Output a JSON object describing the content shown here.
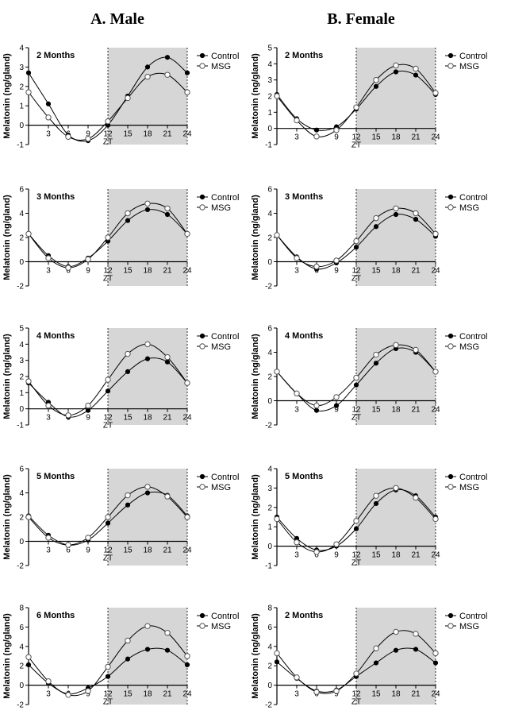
{
  "columns": [
    {
      "title": "A. Male"
    },
    {
      "title": "B. Female"
    }
  ],
  "chart_data": [
    {
      "type": "line",
      "panel_label": "2 Months",
      "ylabel": "Melatonin (ng/gland)",
      "xlabel": "ZT",
      "xticks": [
        3,
        6,
        9,
        12,
        15,
        18,
        21,
        24
      ],
      "ylim": [
        -1,
        4
      ],
      "yticks": [
        -1,
        0,
        1,
        2,
        3,
        4
      ],
      "dark_phase": [
        12,
        24
      ],
      "legend": "top-right",
      "series": [
        {
          "name": "Control",
          "marker": "filled",
          "x": [
            0,
            3,
            6,
            9,
            12,
            15,
            18,
            21,
            24
          ],
          "y": [
            2.7,
            1.1,
            -0.5,
            -0.8,
            0,
            1.5,
            3.0,
            3.5,
            2.7
          ]
        },
        {
          "name": "MSG",
          "marker": "open",
          "x": [
            0,
            3,
            6,
            9,
            12,
            15,
            18,
            21,
            24
          ],
          "y": [
            1.7,
            0.4,
            -0.6,
            -0.7,
            0.2,
            1.4,
            2.5,
            2.6,
            1.7
          ]
        }
      ]
    },
    {
      "type": "line",
      "panel_label": "2 Months",
      "ylabel": "Melatonin (ng/gland)",
      "xlabel": "ZT",
      "xticks": [
        3,
        6,
        9,
        12,
        15,
        18,
        21,
        24
      ],
      "ylim": [
        -1,
        5
      ],
      "yticks": [
        -1,
        0,
        1,
        2,
        3,
        4,
        5
      ],
      "dark_phase": [
        12,
        24
      ],
      "legend": "top-right",
      "series": [
        {
          "name": "Control",
          "marker": "filled",
          "x": [
            0,
            3,
            6,
            9,
            12,
            15,
            18,
            21,
            24
          ],
          "y": [
            2.1,
            0.6,
            -0.1,
            0.1,
            1.2,
            2.6,
            3.5,
            3.3,
            2.1
          ]
        },
        {
          "name": "MSG",
          "marker": "open",
          "x": [
            0,
            3,
            6,
            9,
            12,
            15,
            18,
            21,
            24
          ],
          "y": [
            2.0,
            0.5,
            -0.5,
            -0.1,
            1.3,
            3.0,
            3.9,
            3.7,
            2.2
          ]
        }
      ]
    },
    {
      "type": "line",
      "panel_label": "3 Months",
      "ylabel": "Melatonin (ng/gland)",
      "xlabel": "ZT",
      "xticks": [
        3,
        6,
        9,
        12,
        15,
        18,
        21,
        24
      ],
      "ylim": [
        -2,
        6
      ],
      "yticks": [
        -2,
        0,
        2,
        4,
        6
      ],
      "dark_phase": [
        12,
        24
      ],
      "legend": "top-right",
      "series": [
        {
          "name": "Control",
          "marker": "filled",
          "x": [
            0,
            3,
            6,
            9,
            12,
            15,
            18,
            21,
            24
          ],
          "y": [
            2.3,
            0.5,
            -0.4,
            0.3,
            1.7,
            3.4,
            4.3,
            3.9,
            2.3
          ]
        },
        {
          "name": "MSG",
          "marker": "open",
          "x": [
            0,
            3,
            6,
            9,
            12,
            15,
            18,
            21,
            24
          ],
          "y": [
            2.3,
            0.3,
            -0.5,
            0.2,
            2.0,
            4.0,
            4.8,
            4.4,
            2.3
          ]
        }
      ]
    },
    {
      "type": "line",
      "panel_label": "3 Months",
      "ylabel": "Melatonin (ng/gland)",
      "xlabel": "ZT",
      "xticks": [
        3,
        6,
        9,
        12,
        15,
        18,
        21,
        24
      ],
      "ylim": [
        -2,
        6
      ],
      "yticks": [
        -2,
        0,
        2,
        4,
        6
      ],
      "dark_phase": [
        12,
        24
      ],
      "legend": "top-right",
      "series": [
        {
          "name": "Control",
          "marker": "filled",
          "x": [
            0,
            3,
            6,
            9,
            12,
            15,
            18,
            21,
            24
          ],
          "y": [
            2.2,
            0.4,
            -0.6,
            -0.1,
            1.2,
            2.9,
            3.9,
            3.5,
            2.1
          ]
        },
        {
          "name": "MSG",
          "marker": "open",
          "x": [
            0,
            3,
            6,
            9,
            12,
            15,
            18,
            21,
            24
          ],
          "y": [
            2.2,
            0.3,
            -0.4,
            0.1,
            1.7,
            3.6,
            4.4,
            4.0,
            2.3
          ]
        }
      ]
    },
    {
      "type": "line",
      "panel_label": "4 Months",
      "ylabel": "Melatonin (ng/gland)",
      "xlabel": "ZT",
      "xticks": [
        3,
        6,
        9,
        12,
        15,
        18,
        21,
        24
      ],
      "ylim": [
        -1,
        5
      ],
      "yticks": [
        -1,
        0,
        1,
        2,
        3,
        4,
        5
      ],
      "dark_phase": [
        12,
        24
      ],
      "legend": "top-right",
      "series": [
        {
          "name": "Control",
          "marker": "filled",
          "x": [
            0,
            3,
            6,
            9,
            12,
            15,
            18,
            21,
            24
          ],
          "y": [
            1.6,
            0.4,
            -0.5,
            -0.1,
            1.1,
            2.3,
            3.1,
            2.9,
            1.6
          ]
        },
        {
          "name": "MSG",
          "marker": "open",
          "x": [
            0,
            3,
            6,
            9,
            12,
            15,
            18,
            21,
            24
          ],
          "y": [
            1.7,
            0.2,
            -0.4,
            0.2,
            1.8,
            3.4,
            4.0,
            3.2,
            1.6
          ]
        }
      ]
    },
    {
      "type": "line",
      "panel_label": "4 Months",
      "ylabel": "Melatonin (ng/gland)",
      "xlabel": "ZT",
      "xticks": [
        3,
        6,
        9,
        12,
        15,
        18,
        21,
        24
      ],
      "ylim": [
        -2,
        6
      ],
      "yticks": [
        -2,
        0,
        2,
        4,
        6
      ],
      "dark_phase": [
        12,
        24
      ],
      "legend": "top-right",
      "series": [
        {
          "name": "Control",
          "marker": "filled",
          "x": [
            0,
            3,
            6,
            9,
            12,
            15,
            18,
            21,
            24
          ],
          "y": [
            2.4,
            0.6,
            -0.8,
            -0.4,
            1.3,
            3.1,
            4.3,
            4.0,
            2.4
          ]
        },
        {
          "name": "MSG",
          "marker": "open",
          "x": [
            0,
            3,
            6,
            9,
            12,
            15,
            18,
            21,
            24
          ],
          "y": [
            2.4,
            0.6,
            -0.4,
            0.3,
            1.9,
            3.8,
            4.6,
            4.2,
            2.4
          ]
        }
      ]
    },
    {
      "type": "line",
      "panel_label": "5 Months",
      "ylabel": "Melatonin (ng/gland)",
      "xlabel": "ZT",
      "xticks": [
        3,
        6,
        9,
        12,
        15,
        18,
        21,
        24
      ],
      "ylim": [
        -2,
        6
      ],
      "yticks": [
        -2,
        0,
        2,
        4,
        6
      ],
      "dark_phase": [
        12,
        24
      ],
      "legend": "top-right",
      "series": [
        {
          "name": "Control",
          "marker": "filled",
          "x": [
            0,
            3,
            6,
            9,
            12,
            15,
            18,
            21,
            24
          ],
          "y": [
            2.1,
            0.5,
            -0.3,
            0.1,
            1.5,
            3.0,
            4.0,
            3.8,
            2.1
          ]
        },
        {
          "name": "MSG",
          "marker": "open",
          "x": [
            0,
            3,
            6,
            9,
            12,
            15,
            18,
            21,
            24
          ],
          "y": [
            2.0,
            0.3,
            -0.3,
            0.3,
            2.0,
            3.8,
            4.5,
            3.7,
            2.0
          ]
        }
      ]
    },
    {
      "type": "line",
      "panel_label": "5 Months",
      "ylabel": "Melatonin (ng/gland)",
      "xlabel": "ZT",
      "xticks": [
        3,
        6,
        9,
        12,
        15,
        18,
        21,
        24
      ],
      "ylim": [
        -1,
        4
      ],
      "yticks": [
        -1,
        0,
        1,
        2,
        3,
        4
      ],
      "dark_phase": [
        12,
        24
      ],
      "legend": "top-right",
      "series": [
        {
          "name": "Control",
          "marker": "filled",
          "x": [
            0,
            3,
            6,
            9,
            12,
            15,
            18,
            21,
            24
          ],
          "y": [
            1.5,
            0.4,
            -0.2,
            0,
            0.9,
            2.2,
            2.9,
            2.6,
            1.5
          ]
        },
        {
          "name": "MSG",
          "marker": "open",
          "x": [
            0,
            3,
            6,
            9,
            12,
            15,
            18,
            21,
            24
          ],
          "y": [
            1.4,
            0.2,
            -0.3,
            0.1,
            1.3,
            2.6,
            3.0,
            2.5,
            1.4
          ]
        }
      ]
    },
    {
      "type": "line",
      "panel_label": "6 Months",
      "ylabel": "Melatonin (ng/gland)",
      "xlabel": "ZT",
      "xticks": [
        3,
        6,
        9,
        12,
        15,
        18,
        21,
        24
      ],
      "ylim": [
        -2,
        8
      ],
      "yticks": [
        -2,
        0,
        2,
        4,
        6,
        8
      ],
      "dark_phase": [
        12,
        24
      ],
      "legend": "top-right",
      "series": [
        {
          "name": "Control",
          "marker": "filled",
          "x": [
            0,
            3,
            6,
            9,
            12,
            15,
            18,
            21,
            24
          ],
          "y": [
            2.1,
            0.2,
            -0.9,
            -0.3,
            0.9,
            2.7,
            3.7,
            3.6,
            2.1
          ]
        },
        {
          "name": "MSG",
          "marker": "open",
          "x": [
            0,
            3,
            6,
            9,
            12,
            15,
            18,
            21,
            24
          ],
          "y": [
            2.9,
            0.4,
            -1.0,
            -0.6,
            1.9,
            4.6,
            6.1,
            5.4,
            3.0
          ]
        }
      ]
    },
    {
      "type": "line",
      "panel_label": "2 Months",
      "ylabel": "Melatonin (ng/gland)",
      "xlabel": "ZT",
      "xticks": [
        3,
        6,
        9,
        12,
        15,
        18,
        21,
        24
      ],
      "ylim": [
        -2,
        8
      ],
      "yticks": [
        -2,
        0,
        2,
        4,
        6,
        8
      ],
      "dark_phase": [
        12,
        24
      ],
      "legend": "top-right",
      "series": [
        {
          "name": "Control",
          "marker": "filled",
          "x": [
            0,
            3,
            6,
            9,
            12,
            15,
            18,
            21,
            24
          ],
          "y": [
            2.4,
            0.7,
            -0.6,
            -0.5,
            0.9,
            2.3,
            3.6,
            3.7,
            2.3
          ]
        },
        {
          "name": "MSG",
          "marker": "open",
          "x": [
            0,
            3,
            6,
            9,
            12,
            15,
            18,
            21,
            24
          ],
          "y": [
            3.3,
            0.8,
            -0.7,
            -0.6,
            1.2,
            3.8,
            5.5,
            5.3,
            3.3
          ]
        }
      ]
    }
  ]
}
